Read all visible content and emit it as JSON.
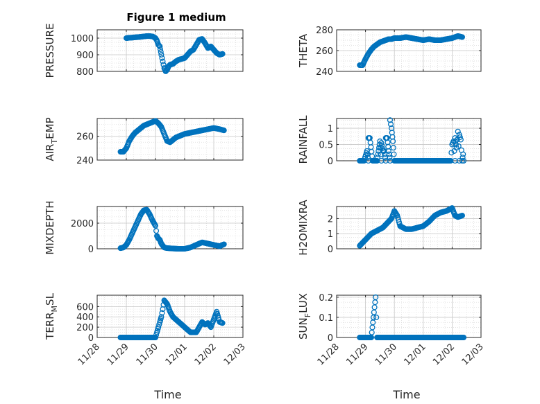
{
  "figure_title": "Figure 1 medium",
  "colors": {
    "marker": "#0072BD",
    "axis": "#262626",
    "grid": "#d9d9d9"
  },
  "chart_data": [
    {
      "type": "scatter",
      "panel": "top-left",
      "title": "Figure 1 medium",
      "ylabel": {
        "pre": "PRESSURE",
        "sub": "",
        "post": ""
      },
      "xlabel": "",
      "xlim": [
        0,
        5
      ],
      "ylim": [
        800,
        1050
      ],
      "yticks": [
        800,
        900,
        1000
      ],
      "ytick_labels": [
        "800",
        "900",
        "1000"
      ],
      "xticks": [
        0,
        1,
        2,
        3,
        4,
        5
      ],
      "xtick_labels": [],
      "grid": true,
      "x": [
        1.0,
        1.1,
        1.2,
        1.3,
        1.4,
        1.5,
        1.6,
        1.7,
        1.8,
        1.9,
        2.0,
        2.05,
        2.1,
        2.15,
        2.2,
        2.25,
        2.3,
        2.35,
        2.4,
        2.45,
        2.5,
        2.6,
        2.7,
        2.8,
        2.9,
        3.0,
        3.1,
        3.2,
        3.3,
        3.4,
        3.5,
        3.6,
        3.7,
        3.8,
        3.9,
        4.0,
        4.1,
        4.2,
        4.3
      ],
      "y": [
        1000,
        1002,
        1003,
        1005,
        1006,
        1008,
        1010,
        1012,
        1012,
        1010,
        1000,
        985,
        960,
        950,
        900,
        860,
        820,
        800,
        810,
        830,
        840,
        845,
        860,
        870,
        875,
        880,
        900,
        920,
        930,
        960,
        990,
        995,
        970,
        940,
        950,
        930,
        910,
        900,
        905
      ]
    },
    {
      "type": "scatter",
      "panel": "top-right",
      "ylabel": {
        "pre": "THETA",
        "sub": "",
        "post": ""
      },
      "xlabel": "",
      "xlim": [
        0,
        5
      ],
      "ylim": [
        240,
        280
      ],
      "yticks": [
        240,
        260,
        280
      ],
      "ytick_labels": [
        "240",
        "260",
        "280"
      ],
      "xticks": [
        0,
        1,
        2,
        3,
        4,
        5
      ],
      "xtick_labels": [],
      "grid": true,
      "x": [
        0.8,
        0.9,
        1.0,
        1.1,
        1.2,
        1.3,
        1.4,
        1.5,
        1.6,
        1.7,
        1.8,
        1.9,
        2.0,
        2.2,
        2.4,
        2.6,
        2.8,
        3.0,
        3.2,
        3.4,
        3.6,
        3.8,
        4.0,
        4.2,
        4.35
      ],
      "y": [
        246,
        246,
        252,
        257,
        261,
        264,
        266,
        268,
        269,
        270,
        271,
        271,
        272,
        272,
        273,
        272,
        271,
        270,
        271,
        270,
        270,
        271,
        272,
        274,
        273
      ]
    },
    {
      "type": "scatter",
      "panel": "row2-left",
      "ylabel": {
        "pre": "AIR",
        "sub": "T",
        "post": "EMP"
      },
      "xlabel": "",
      "xlim": [
        0,
        5
      ],
      "ylim": [
        240,
        275
      ],
      "yticks": [
        240,
        260
      ],
      "ytick_labels": [
        "240",
        "260"
      ],
      "xticks": [
        0,
        1,
        2,
        3,
        4,
        5
      ],
      "xtick_labels": [],
      "grid": true,
      "x": [
        0.8,
        0.9,
        1.0,
        1.1,
        1.2,
        1.3,
        1.4,
        1.5,
        1.6,
        1.7,
        1.8,
        1.9,
        2.0,
        2.1,
        2.2,
        2.3,
        2.4,
        2.5,
        2.6,
        2.7,
        2.8,
        2.9,
        3.0,
        3.2,
        3.4,
        3.6,
        3.8,
        4.0,
        4.2,
        4.35
      ],
      "y": [
        247,
        247,
        250,
        256,
        260,
        263,
        265,
        267,
        269,
        270,
        271,
        272,
        273,
        271,
        268,
        262,
        256,
        255,
        257,
        259,
        260,
        261,
        262,
        263,
        264,
        265,
        266,
        267,
        266,
        265
      ]
    },
    {
      "type": "scatter",
      "panel": "row2-right",
      "ylabel": {
        "pre": "RAINFALL",
        "sub": "",
        "post": ""
      },
      "xlabel": "",
      "xlim": [
        0,
        5
      ],
      "ylim": [
        0,
        1.3
      ],
      "yticks": [
        0,
        0.5,
        1
      ],
      "ytick_labels": [
        "0",
        "0.5",
        "1"
      ],
      "xticks": [
        0,
        1,
        2,
        3,
        4,
        5
      ],
      "xtick_labels": [],
      "grid": true,
      "x": [
        0.8,
        0.95,
        1.1,
        1.25,
        1.4,
        1.55,
        1.7,
        1.85,
        2.0,
        2.15,
        2.3,
        2.45,
        2.6,
        2.75,
        2.9,
        3.05,
        3.2,
        3.35,
        3.5,
        3.65,
        3.8,
        3.95,
        4.1,
        4.25,
        4.4,
        1.05,
        1.1,
        1.15,
        1.45,
        1.5,
        1.55,
        1.6,
        1.65,
        1.7,
        1.75,
        1.8,
        1.85,
        1.9,
        1.95,
        4.0,
        4.05,
        4.1,
        4.15,
        4.2,
        4.25,
        4.3,
        4.35,
        4.38
      ],
      "y": [
        0,
        0,
        0,
        0,
        0,
        0,
        0,
        0,
        0,
        0,
        0,
        0,
        0,
        0,
        0,
        0,
        0,
        0,
        0,
        0,
        0,
        0,
        0,
        0,
        0,
        0.3,
        0.7,
        0.7,
        0.3,
        0.6,
        0.55,
        0.3,
        0.3,
        0.7,
        0.7,
        0.3,
        1.25,
        1.0,
        0.6,
        0.5,
        0.6,
        0.7,
        0.4,
        0.9,
        0.8,
        0.65,
        0.0,
        0.2
      ]
    },
    {
      "type": "scatter",
      "panel": "row3-left",
      "ylabel": {
        "pre": "MIXDEPTH",
        "sub": "",
        "post": ""
      },
      "xlabel": "",
      "xlim": [
        0,
        5
      ],
      "ylim": [
        0,
        3300
      ],
      "yticks": [
        0,
        2000
      ],
      "ytick_labels": [
        "0",
        "2000"
      ],
      "xticks": [
        0,
        1,
        2,
        3,
        4,
        5
      ],
      "xtick_labels": [],
      "grid": true,
      "x": [
        0.8,
        0.9,
        1.0,
        1.1,
        1.2,
        1.3,
        1.4,
        1.5,
        1.6,
        1.7,
        1.8,
        1.9,
        2.0,
        2.05,
        2.1,
        2.15,
        2.2,
        2.3,
        2.4,
        2.6,
        2.8,
        3.0,
        3.2,
        3.4,
        3.6,
        3.8,
        4.0,
        4.2,
        4.35
      ],
      "y": [
        50,
        100,
        300,
        700,
        1200,
        1700,
        2200,
        2700,
        3000,
        3050,
        2700,
        2200,
        1800,
        1000,
        800,
        700,
        400,
        100,
        50,
        20,
        0,
        0,
        100,
        300,
        500,
        400,
        300,
        200,
        350
      ]
    },
    {
      "type": "scatter",
      "panel": "row3-right",
      "ylabel": {
        "pre": "H2OMIXRA",
        "sub": "",
        "post": ""
      },
      "xlabel": "",
      "xlim": [
        0,
        5
      ],
      "ylim": [
        0,
        2.8
      ],
      "yticks": [
        0,
        1,
        2
      ],
      "ytick_labels": [
        "0",
        "1",
        "2"
      ],
      "xticks": [
        0,
        1,
        2,
        3,
        4,
        5
      ],
      "xtick_labels": [],
      "grid": true,
      "x": [
        0.8,
        0.9,
        1.0,
        1.1,
        1.2,
        1.3,
        1.4,
        1.5,
        1.6,
        1.7,
        1.8,
        1.9,
        2.0,
        2.1,
        2.2,
        2.4,
        2.6,
        2.8,
        3.0,
        3.2,
        3.4,
        3.6,
        3.8,
        4.0,
        4.1,
        4.2,
        4.35
      ],
      "y": [
        0.2,
        0.4,
        0.6,
        0.8,
        1.0,
        1.1,
        1.2,
        1.3,
        1.4,
        1.6,
        1.8,
        2.0,
        2.5,
        2.2,
        1.5,
        1.3,
        1.3,
        1.4,
        1.5,
        1.8,
        2.2,
        2.4,
        2.5,
        2.7,
        2.2,
        2.1,
        2.2
      ]
    },
    {
      "type": "scatter",
      "panel": "bottom-left",
      "ylabel": {
        "pre": "TERR",
        "sub": "M",
        "post": "SL"
      },
      "xlabel": "Time",
      "xlim": [
        0,
        5
      ],
      "ylim": [
        0,
        820
      ],
      "yticks": [
        0,
        200,
        400,
        600
      ],
      "ytick_labels": [
        "0",
        "200",
        "400",
        "600"
      ],
      "xticks": [
        0,
        1,
        2,
        3,
        4,
        5
      ],
      "xtick_labels": [
        "11/28",
        "11/29",
        "11/30",
        "12/01",
        "12/02",
        "12/03"
      ],
      "grid": true,
      "x": [
        0.8,
        1.0,
        1.2,
        1.4,
        1.6,
        1.8,
        2.0,
        2.05,
        2.1,
        2.15,
        2.2,
        2.25,
        2.3,
        2.4,
        2.5,
        2.6,
        2.7,
        2.8,
        2.9,
        3.0,
        3.1,
        3.2,
        3.4,
        3.6,
        3.7,
        3.8,
        3.9,
        4.0,
        4.1,
        4.2,
        4.3
      ],
      "y": [
        0,
        0,
        0,
        0,
        0,
        0,
        0,
        100,
        200,
        300,
        400,
        550,
        720,
        650,
        500,
        400,
        350,
        300,
        250,
        200,
        150,
        100,
        100,
        300,
        250,
        280,
        200,
        350,
        500,
        300,
        280
      ]
    },
    {
      "type": "scatter",
      "panel": "bottom-right",
      "ylabel": {
        "pre": "SUN",
        "sub": "F",
        "post": "LUX"
      },
      "xlabel": "Time",
      "xlim": [
        0,
        5
      ],
      "ylim": [
        0,
        0.21
      ],
      "yticks": [
        0,
        0.1,
        0.2
      ],
      "ytick_labels": [
        "0",
        "0.1",
        "0.2"
      ],
      "xticks": [
        0,
        1,
        2,
        3,
        4,
        5
      ],
      "xtick_labels": [
        "11/28",
        "11/29",
        "11/30",
        "12/01",
        "12/02",
        "12/03"
      ],
      "grid": true,
      "x": [
        0.8,
        1.0,
        1.2,
        1.4,
        1.6,
        1.8,
        2.0,
        2.2,
        2.4,
        2.6,
        2.8,
        3.0,
        3.2,
        3.4,
        3.6,
        3.8,
        4.0,
        4.2,
        4.4,
        1.35
      ],
      "y": [
        0,
        0,
        0,
        0,
        0,
        0,
        0,
        0,
        0,
        0,
        0,
        0,
        0,
        0,
        0,
        0,
        0,
        0,
        0,
        0.2
      ]
    }
  ]
}
